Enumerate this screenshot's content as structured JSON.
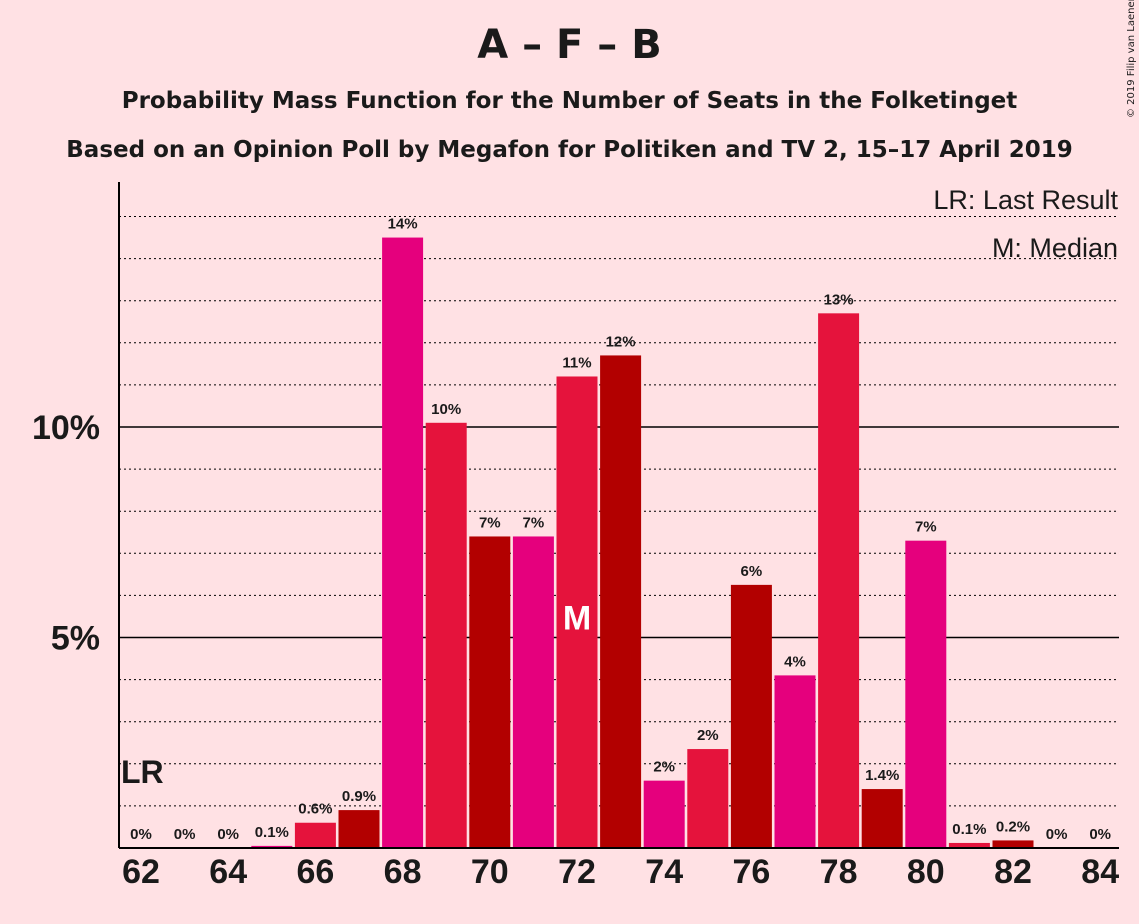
{
  "title": "A – F – B",
  "subtitle1": "Probability Mass Function for the Number of Seats in the Folketinget",
  "subtitle2": "Based on an Opinion Poll by Megafon for Politiken and TV 2, 15–17 April 2019",
  "copyright": "© 2019 Filip van Laenen",
  "legend": {
    "lr": "LR: Last Result",
    "median": "M: Median"
  },
  "markers": {
    "lr_label": "LR",
    "median_label": "M"
  },
  "colors": {
    "background": "#FFE1E4",
    "A": "#E5007D",
    "F": "#E5133C",
    "B": "#B20000"
  },
  "chart_data": {
    "type": "bar",
    "x": [
      62,
      63,
      64,
      65,
      66,
      67,
      68,
      69,
      70,
      71,
      72,
      73,
      74,
      75,
      76,
      77,
      78,
      79,
      80,
      81,
      82,
      83,
      84
    ],
    "values": [
      0,
      0,
      0,
      0.05,
      0.6,
      0.9,
      14.5,
      10.1,
      7.4,
      7.4,
      11.2,
      11.7,
      1.6,
      2.35,
      6.25,
      4.1,
      12.7,
      1.4,
      7.3,
      0.12,
      0.18,
      0,
      0
    ],
    "labels": [
      "0%",
      "0%",
      "0%",
      "0.1%",
      "0.6%",
      "0.9%",
      "14%",
      "10%",
      "7%",
      "7%",
      "11%",
      "12%",
      "2%",
      "2%",
      "6%",
      "4%",
      "13%",
      "1.4%",
      "7%",
      "0.1%",
      "0.2%",
      "0%",
      "0%"
    ],
    "color_cycle": [
      "A",
      "F",
      "B"
    ],
    "x_tick_labels": [
      "62",
      "64",
      "66",
      "68",
      "70",
      "72",
      "74",
      "76",
      "78",
      "80",
      "82",
      "84"
    ],
    "y_tick_labels": [
      "5%",
      "10%"
    ],
    "y_ticks": [
      5,
      10
    ],
    "ylim": [
      0,
      15.8
    ],
    "last_result_seat": 62,
    "median_seat": 72,
    "grid": "dotted lines every 1%, solid at 5% and 10%"
  }
}
